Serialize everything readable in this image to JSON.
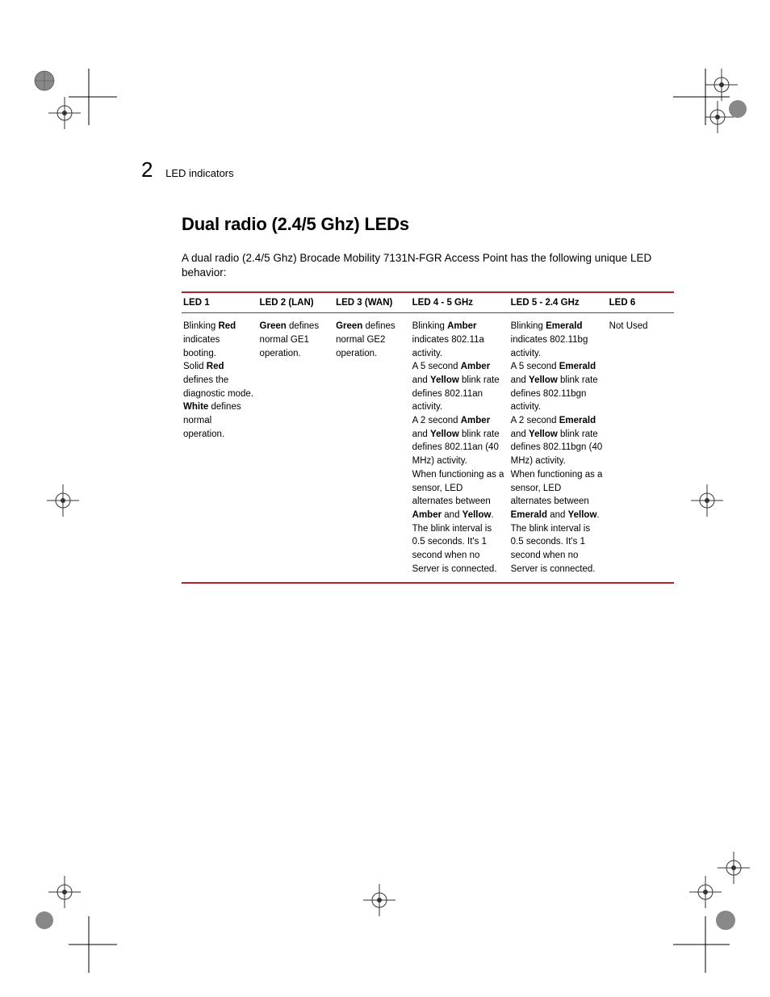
{
  "header": {
    "chapter_number": "2",
    "section_label": "LED indicators"
  },
  "title": "Dual radio (2.4/5 Ghz) LEDs",
  "intro": "A dual radio (2.4/5 Ghz) Brocade Mobility 7131N-FGR Access Point has the following unique LED behavior:",
  "table": {
    "accent_color": "#b51f2a",
    "columns": [
      {
        "label": "LED 1",
        "width": "15.5%"
      },
      {
        "label": "LED 2 (LAN)",
        "width": "15.5%"
      },
      {
        "label": "LED 3 (WAN)",
        "width": "15.5%"
      },
      {
        "label": "LED 4 - 5 GHz",
        "width": "20%"
      },
      {
        "label": "LED 5 - 2.4 GHz",
        "width": "20%"
      },
      {
        "label": "LED 6",
        "width": "13.5%"
      }
    ],
    "row": {
      "led1": {
        "segments": [
          {
            "t": "Blinking "
          },
          {
            "t": "Red",
            "b": true
          },
          {
            "t": " indicates booting."
          },
          {
            "br": true
          },
          {
            "t": "Solid "
          },
          {
            "t": "Red",
            "b": true
          },
          {
            "t": " defines the diagnostic mode."
          },
          {
            "br": true
          },
          {
            "t": "White",
            "b": true
          },
          {
            "t": " defines normal operation."
          }
        ]
      },
      "led2": {
        "segments": [
          {
            "t": "Green",
            "b": true
          },
          {
            "t": " defines normal GE1 operation."
          }
        ]
      },
      "led3": {
        "segments": [
          {
            "t": "Green",
            "b": true
          },
          {
            "t": " defines normal GE2 operation."
          }
        ]
      },
      "led4": {
        "segments": [
          {
            "t": "Blinking "
          },
          {
            "t": "Amber",
            "b": true
          },
          {
            "t": " indicates 802.11a activity."
          },
          {
            "br": true
          },
          {
            "t": "A 5 second "
          },
          {
            "t": "Amber",
            "b": true
          },
          {
            "t": " and "
          },
          {
            "t": "Yellow",
            "b": true
          },
          {
            "t": " blink rate defines 802.11an activity."
          },
          {
            "br": true
          },
          {
            "t": "A 2 second "
          },
          {
            "t": "Amber",
            "b": true
          },
          {
            "t": " and "
          },
          {
            "t": "Yellow",
            "b": true
          },
          {
            "t": " blink rate defines 802.11an (40 MHz) activity."
          },
          {
            "br": true
          },
          {
            "t": "When functioning as a sensor, LED alternates between "
          },
          {
            "t": "Amber",
            "b": true
          },
          {
            "t": " and "
          },
          {
            "t": "Yellow",
            "b": true
          },
          {
            "t": "."
          },
          {
            "br": true
          },
          {
            "t": "The blink interval is 0.5 seconds. It's 1 second when no Server is connected."
          }
        ]
      },
      "led5": {
        "segments": [
          {
            "t": "Blinking "
          },
          {
            "t": "Emerald",
            "b": true
          },
          {
            "t": " indicates 802.11bg activity."
          },
          {
            "br": true
          },
          {
            "t": "A 5 second "
          },
          {
            "t": "Emerald",
            "b": true
          },
          {
            "t": " and "
          },
          {
            "t": "Yellow",
            "b": true
          },
          {
            "t": " blink rate defines 802.11bgn activity."
          },
          {
            "br": true
          },
          {
            "t": "A 2 second "
          },
          {
            "t": "Emerald",
            "b": true
          },
          {
            "t": " and "
          },
          {
            "t": "Yellow",
            "b": true
          },
          {
            "t": " blink rate defines 802.11bgn  (40 MHz) activity."
          },
          {
            "br": true
          },
          {
            "t": "When functioning as a sensor, LED alternates between "
          },
          {
            "t": "Emerald",
            "b": true
          },
          {
            "t": " and "
          },
          {
            "t": "Yellow",
            "b": true
          },
          {
            "t": "."
          },
          {
            "br": true
          },
          {
            "t": "The blink interval is 0.5 seconds. It's 1 second when no Server is connected."
          }
        ]
      },
      "led6": {
        "segments": [
          {
            "t": "Not Used"
          }
        ]
      }
    }
  }
}
